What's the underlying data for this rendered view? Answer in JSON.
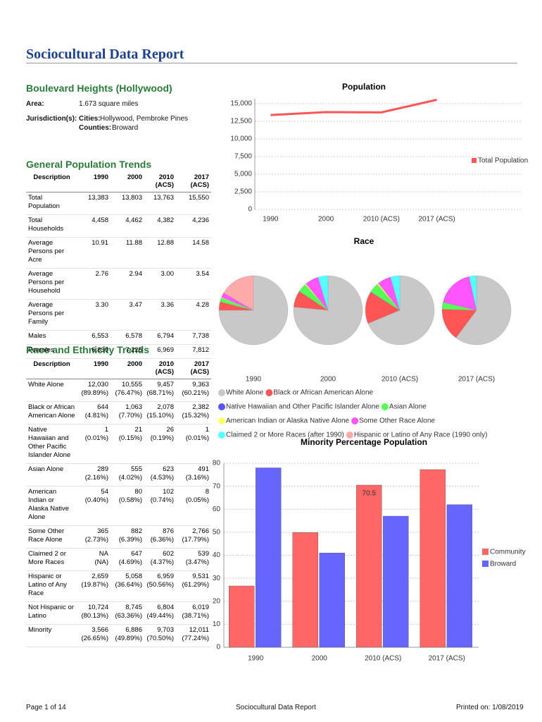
{
  "header": {
    "title": "Sociocultural Data Report"
  },
  "area": {
    "name": "Boulevard Heights (Hollywood)",
    "area_label": "Area:",
    "area_value": "1.673 square miles",
    "jurisdiction_label": "Jurisdiction(s):",
    "cities_label": "Cities:",
    "cities": "Hollywood, Pembroke Pines",
    "counties_label": "Counties:",
    "counties": "Broward"
  },
  "general_table": {
    "title": "General Population Trends",
    "columns": [
      "Description",
      "1990",
      "2000",
      "2010 (ACS)",
      "2017 (ACS)"
    ],
    "rows": [
      [
        "Total Population",
        "13,383",
        "13,803",
        "13,763",
        "15,550"
      ],
      [
        "Total Households",
        "4,458",
        "4,462",
        "4,382",
        "4,236"
      ],
      [
        "Average Persons per Acre",
        "10.91",
        "11.88",
        "12.88",
        "14.58"
      ],
      [
        "Average Persons per Household",
        "2.76",
        "2.94",
        "3.00",
        "3.54"
      ],
      [
        "Average Persons per Family",
        "3.30",
        "3.47",
        "3.36",
        "4.28"
      ],
      [
        "Males",
        "6,553",
        "6,578",
        "6,794",
        "7,738"
      ],
      [
        "Females",
        "6,830",
        "7,225",
        "6,969",
        "7,812"
      ]
    ]
  },
  "race_table": {
    "title": "Race and Ethnicity Trends",
    "columns": [
      "Description",
      "1990",
      "2000",
      "2010 (ACS)",
      "2017 (ACS)"
    ],
    "rows": [
      {
        "label": "White Alone",
        "cells": [
          [
            "12,030",
            "(89.89%)"
          ],
          [
            "10,555",
            "(76.47%)"
          ],
          [
            "9,457",
            "(68.71%)"
          ],
          [
            "9,363",
            "(60.21%)"
          ]
        ]
      },
      {
        "label": "Black or African American Alone",
        "cells": [
          [
            "644",
            "(4.81%)"
          ],
          [
            "1,063",
            "(7.70%)"
          ],
          [
            "2,078",
            "(15.10%)"
          ],
          [
            "2,382",
            "(15.32%)"
          ]
        ]
      },
      {
        "label": "Native Hawaiian and Other Pacific Islander Alone",
        "cells": [
          [
            "1",
            "(0.01%)"
          ],
          [
            "21",
            "(0.15%)"
          ],
          [
            "26",
            "(0.19%)"
          ],
          [
            "1",
            "(0.01%)"
          ]
        ]
      },
      {
        "label": "Asian Alone",
        "cells": [
          [
            "289",
            "(2.16%)"
          ],
          [
            "555",
            "(4.02%)"
          ],
          [
            "623",
            "(4.53%)"
          ],
          [
            "491",
            "(3.16%)"
          ]
        ]
      },
      {
        "label": "American Indian or Alaska Native Alone",
        "cells": [
          [
            "54",
            "(0.40%)"
          ],
          [
            "80",
            "(0.58%)"
          ],
          [
            "102",
            "(0.74%)"
          ],
          [
            "8",
            "(0.05%)"
          ]
        ]
      },
      {
        "label": "Some Other Race Alone",
        "cells": [
          [
            "365",
            "(2.73%)"
          ],
          [
            "882",
            "(6.39%)"
          ],
          [
            "876",
            "(6.36%)"
          ],
          [
            "2,766",
            "(17.79%)"
          ]
        ]
      },
      {
        "label": "Claimed 2 or More Races",
        "cells": [
          [
            "NA",
            "(NA)"
          ],
          [
            "647",
            "(4.69%)"
          ],
          [
            "602",
            "(4.37%)"
          ],
          [
            "539",
            "(3.47%)"
          ]
        ]
      },
      {
        "label": "Hispanic or Latino of Any Race",
        "cells": [
          [
            "2,659",
            "(19.87%)"
          ],
          [
            "5,058",
            "(36.64%)"
          ],
          [
            "6,959",
            "(50.56%)"
          ],
          [
            "9,531",
            "(61.29%)"
          ]
        ]
      },
      {
        "label": "Not Hispanic or Latino",
        "cells": [
          [
            "10,724",
            "(80.13%)"
          ],
          [
            "8,745",
            "(63.36%)"
          ],
          [
            "6,804",
            "(49.44%)"
          ],
          [
            "6,019",
            "(38.71%)"
          ]
        ]
      },
      {
        "label": "Minority",
        "cells": [
          [
            "3,566",
            "(26.65%)"
          ],
          [
            "6,886",
            "(49.89%)"
          ],
          [
            "9,703",
            "(70.50%)"
          ],
          [
            "12,011",
            "(77.24%)"
          ]
        ]
      }
    ]
  },
  "chart_data": [
    {
      "type": "line",
      "title": "Population",
      "categories": [
        "1990",
        "2000",
        "2010 (ACS)",
        "2017 (ACS)"
      ],
      "series": [
        {
          "name": "Total Population",
          "color": "#ff5555",
          "values": [
            13383,
            13803,
            13763,
            15550
          ]
        }
      ],
      "ylim": [
        0,
        15700
      ],
      "yticks": [
        0,
        {
          "value": 2500,
          "label": "2,500"
        },
        {
          "value": 5000,
          "label": "5,000"
        },
        {
          "value": 7500,
          "label": "7,500"
        },
        {
          "value": 10000,
          "label": "10,000"
        },
        {
          "value": 12500,
          "label": "12,500"
        },
        {
          "value": 15000,
          "label": "15,000"
        }
      ],
      "grid": true
    },
    {
      "type": "pie",
      "title": "Race",
      "categories": [
        "White Alone",
        "Black or African American Alone",
        "Native Hawaiian and Other Pacific Islander Alone",
        "Asian Alone",
        "American Indian or Alaska Native Alone",
        "Some Other Race Alone",
        "Claimed 2 or More Races (after 1990)",
        "Hispanic or Latino of Any Race (1990 only)"
      ],
      "colors": [
        "#c8c8c8",
        "#ff5555",
        "#5555ff",
        "#55ff55",
        "#ffff66",
        "#ff55ff",
        "#55ffff",
        "#ffaaaa"
      ],
      "series": [
        {
          "name": "1990",
          "values": [
            89.89,
            4.81,
            0.01,
            2.16,
            0.4,
            2.73,
            null,
            19.87
          ]
        },
        {
          "name": "2000",
          "values": [
            76.47,
            7.7,
            0.15,
            4.02,
            0.58,
            6.39,
            4.69,
            null
          ]
        },
        {
          "name": "2010 (ACS)",
          "values": [
            68.71,
            15.1,
            0.19,
            4.53,
            0.74,
            6.36,
            4.37,
            null
          ]
        },
        {
          "name": "2017 (ACS)",
          "values": [
            60.21,
            15.32,
            0.01,
            3.16,
            0.05,
            17.79,
            3.47,
            null
          ]
        }
      ]
    },
    {
      "type": "bar",
      "title": "Minority Percentage Population",
      "categories": [
        "1990",
        "2000",
        "2010 (ACS)",
        "2017 (ACS)"
      ],
      "series": [
        {
          "name": "Community",
          "color": "#ff6666",
          "values": [
            26.65,
            49.89,
            70.5,
            77.24
          ],
          "value_labels": [
            null,
            null,
            "70.5",
            null
          ]
        },
        {
          "name": "Broward",
          "color": "#6666ff",
          "values": [
            78,
            41,
            57,
            62
          ]
        }
      ],
      "ylim": [
        0,
        80
      ],
      "yticks": [
        0,
        10,
        20,
        30,
        40,
        50,
        60,
        70,
        80
      ],
      "grid": true
    }
  ],
  "footer": {
    "page": "Page 1 of 14",
    "title": "Sociocultural Data Report",
    "printed": "Printed on: 1/08/2019"
  }
}
